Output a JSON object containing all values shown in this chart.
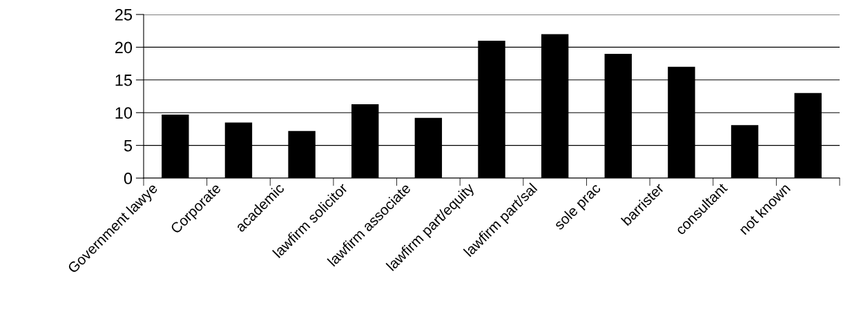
{
  "chart_data": {
    "type": "bar",
    "categories": [
      "Government lawye",
      "Corporate",
      "academic",
      "lawfirm solicitor",
      "lawfirm associate",
      "lawfirm part/equity",
      "lawfirm part/sal",
      "sole prac",
      "barrister",
      "consultant",
      "not known"
    ],
    "values": [
      9.7,
      8.5,
      7.2,
      11.3,
      9.2,
      21,
      22,
      19,
      17,
      8.1,
      13
    ],
    "color": "#000000",
    "ylim": [
      0,
      25
    ],
    "yticks": [
      0,
      5,
      10,
      15,
      20,
      25
    ],
    "grid": "y",
    "legend": false
  }
}
